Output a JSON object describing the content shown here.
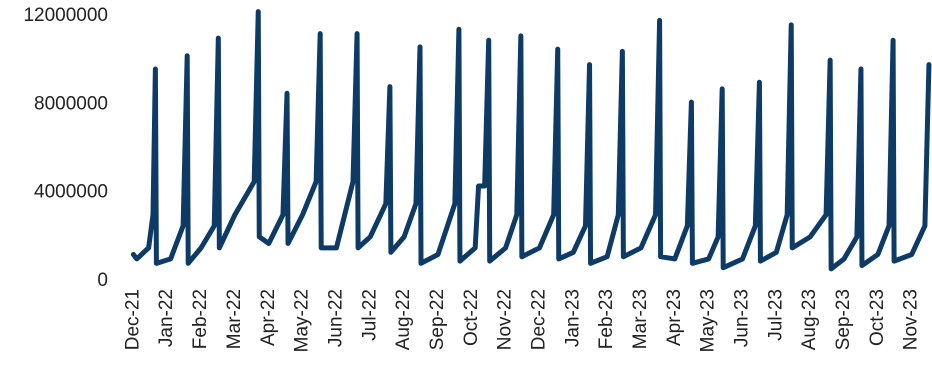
{
  "chart_data": {
    "type": "line",
    "x": [
      0,
      0.1,
      0.45,
      0.58,
      0.65,
      0.68,
      1.1,
      1.47,
      1.59,
      1.62,
      2.0,
      2.39,
      2.51,
      2.54,
      3.0,
      3.57,
      3.69,
      3.72,
      4.0,
      4.42,
      4.54,
      4.57,
      5.0,
      5.4,
      5.52,
      5.55,
      6.0,
      6.49,
      6.61,
      6.64,
      7.0,
      7.46,
      7.58,
      7.61,
      8.0,
      8.35,
      8.47,
      8.5,
      9.0,
      9.5,
      9.62,
      9.65,
      10.1,
      10.2,
      10.38,
      10.5,
      10.53,
      11.0,
      11.33,
      11.45,
      11.48,
      12.0,
      12.42,
      12.54,
      12.57,
      13.0,
      13.36,
      13.48,
      13.51,
      14.0,
      14.33,
      14.45,
      14.48,
      15.0,
      15.43,
      15.55,
      15.58,
      16.0,
      16.37,
      16.49,
      16.52,
      17.0,
      17.28,
      17.4,
      17.43,
      18.0,
      18.38,
      18.5,
      18.53,
      19.0,
      19.32,
      19.44,
      19.47,
      20.0,
      20.47,
      20.59,
      20.62,
      21.0,
      21.38,
      21.5,
      21.53,
      22.0,
      22.33,
      22.45,
      22.48,
      23.0,
      23.39,
      23.51
    ],
    "series": [
      {
        "color": "#0d3b66",
        "values": [
          1200000,
          1000000,
          1500000,
          3000000,
          9600000,
          800000,
          1000000,
          2500000,
          10200000,
          800000,
          1500000,
          2500000,
          11000000,
          1500000,
          3000000,
          4500000,
          12200000,
          2000000,
          1700000,
          3000000,
          8500000,
          1700000,
          3000000,
          4500000,
          11200000,
          1500000,
          1500000,
          4500000,
          11200000,
          1500000,
          2000000,
          3500000,
          8800000,
          1300000,
          2000000,
          3500000,
          10600000,
          800000,
          1200000,
          3500000,
          11400000,
          900000,
          1500000,
          4300000,
          4300000,
          10900000,
          900000,
          1500000,
          3000000,
          11100000,
          1100000,
          1500000,
          3000000,
          10500000,
          1000000,
          1300000,
          2500000,
          9800000,
          800000,
          1100000,
          3000000,
          10400000,
          1100000,
          1500000,
          3000000,
          11800000,
          1100000,
          1000000,
          2500000,
          8100000,
          800000,
          1000000,
          2000000,
          8700000,
          600000,
          1000000,
          2500000,
          9000000,
          900000,
          1300000,
          3000000,
          11600000,
          1500000,
          2000000,
          3000000,
          10000000,
          550000,
          1000000,
          2000000,
          9600000,
          700000,
          1200000,
          2500000,
          10900000,
          900000,
          1200000,
          2500000,
          9800000
        ]
      }
    ],
    "xlim": [
      -0.1,
      23.6
    ],
    "xticks": [
      {
        "value": 0,
        "label": "Dec-21"
      },
      {
        "value": 1,
        "label": "Jan-22"
      },
      {
        "value": 2,
        "label": "Feb-22"
      },
      {
        "value": 3,
        "label": "Mar-22"
      },
      {
        "value": 4,
        "label": "Apr-22"
      },
      {
        "value": 5,
        "label": "May-22"
      },
      {
        "value": 6,
        "label": "Jun-22"
      },
      {
        "value": 7,
        "label": "Jul-22"
      },
      {
        "value": 8,
        "label": "Aug-22"
      },
      {
        "value": 9,
        "label": "Sep-22"
      },
      {
        "value": 10,
        "label": "Oct-22"
      },
      {
        "value": 11,
        "label": "Nov-22"
      },
      {
        "value": 12,
        "label": "Dec-22"
      },
      {
        "value": 13,
        "label": "Jan-23"
      },
      {
        "value": 14,
        "label": "Feb-23"
      },
      {
        "value": 15,
        "label": "Mar-23"
      },
      {
        "value": 16,
        "label": "Apr-23"
      },
      {
        "value": 17,
        "label": "May-23"
      },
      {
        "value": 18,
        "label": "Jun-23"
      },
      {
        "value": 19,
        "label": "Jul-23"
      },
      {
        "value": 20,
        "label": "Aug-23"
      },
      {
        "value": 21,
        "label": "Sep-23"
      },
      {
        "value": 22,
        "label": "Oct-23"
      },
      {
        "value": 23,
        "label": "Nov-23"
      }
    ],
    "ylim": [
      0,
      12000000
    ],
    "yticks": [
      0,
      4000000,
      8000000,
      12000000
    ],
    "grid": false
  }
}
